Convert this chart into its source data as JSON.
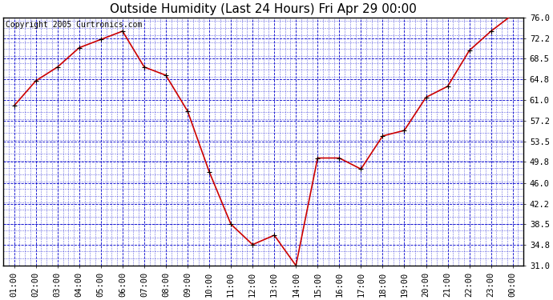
{
  "title": "Outside Humidity (Last 24 Hours) Fri Apr 29 00:00",
  "copyright": "Copyright 2005 Curtronics.com",
  "x_labels": [
    "01:00",
    "02:00",
    "03:00",
    "04:00",
    "05:00",
    "06:00",
    "07:00",
    "08:00",
    "09:00",
    "10:00",
    "11:00",
    "12:00",
    "13:00",
    "14:00",
    "15:00",
    "16:00",
    "17:00",
    "18:00",
    "19:00",
    "20:00",
    "21:00",
    "22:00",
    "23:00",
    "00:00"
  ],
  "x_values": [
    1,
    2,
    3,
    4,
    5,
    6,
    7,
    8,
    9,
    10,
    11,
    12,
    13,
    14,
    15,
    16,
    17,
    18,
    19,
    20,
    21,
    22,
    23,
    24
  ],
  "y_values": [
    60.0,
    64.5,
    67.0,
    70.5,
    72.0,
    73.5,
    67.0,
    65.5,
    59.0,
    48.0,
    38.5,
    34.8,
    36.5,
    31.0,
    50.5,
    50.5,
    48.5,
    54.5,
    55.5,
    61.5,
    63.5,
    70.0,
    73.5,
    76.5
  ],
  "line_color": "#cc0000",
  "marker_color": "#000000",
  "bg_color": "#ffffff",
  "grid_color": "#0000cc",
  "border_color": "#000000",
  "y_ticks": [
    31.0,
    34.8,
    38.5,
    42.2,
    46.0,
    49.8,
    53.5,
    57.2,
    61.0,
    64.8,
    68.5,
    72.2,
    76.0
  ],
  "ylim": [
    31.0,
    76.0
  ],
  "title_fontsize": 11,
  "tick_fontsize": 7.5,
  "copyright_fontsize": 7
}
